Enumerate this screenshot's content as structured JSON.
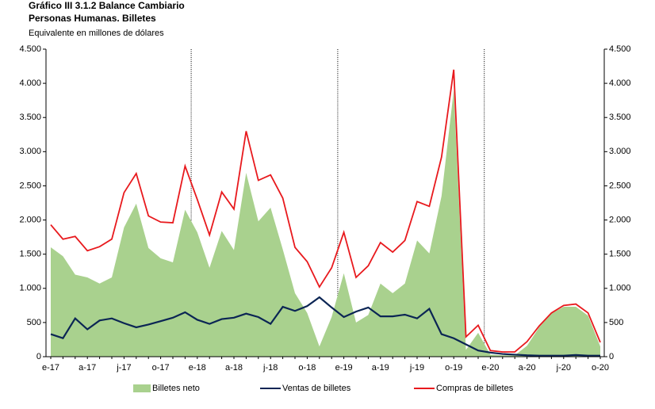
{
  "chart_data": {
    "type": "line",
    "title": "Gráfico III 3.1.2 Balance Cambiario",
    "subtitle": "Personas Humanas. Billetes",
    "y_label": "Equivalente en millones de dólares",
    "categories": [
      "e-17",
      null,
      null,
      "a-17",
      null,
      null,
      "j-17",
      null,
      null,
      "o-17",
      null,
      null,
      "e-18",
      null,
      null,
      "a-18",
      null,
      null,
      "j-18",
      null,
      null,
      "o-18",
      null,
      null,
      "e-19",
      null,
      null,
      "a-19",
      null,
      null,
      "j-19",
      null,
      null,
      "o-19",
      null,
      null,
      "e-20",
      null,
      null,
      "a-20",
      null,
      null,
      "j-20",
      null,
      null,
      "o-20"
    ],
    "series": [
      {
        "name": "Billetes neto",
        "color": "#a9d18e",
        "style": "area",
        "values": [
          1600,
          1470,
          1200,
          1160,
          1070,
          1160,
          1890,
          2240,
          1590,
          1440,
          1380,
          2150,
          1820,
          1300,
          1840,
          1560,
          2690,
          1980,
          2180,
          1570,
          930,
          640,
          150,
          580,
          1220,
          500,
          610,
          1070,
          930,
          1070,
          1700,
          1510,
          2350,
          3900,
          100,
          350,
          30,
          20,
          20,
          160,
          430,
          630,
          730,
          730,
          600,
          150
        ]
      },
      {
        "name": "Ventas de billetes",
        "color": "#0b2554",
        "style": "line",
        "values": [
          330,
          270,
          560,
          400,
          530,
          560,
          490,
          430,
          470,
          520,
          570,
          650,
          540,
          480,
          550,
          570,
          630,
          580,
          480,
          730,
          670,
          740,
          870,
          720,
          580,
          660,
          720,
          590,
          590,
          615,
          560,
          700,
          330,
          270,
          180,
          90,
          60,
          40,
          30,
          20,
          15,
          15,
          15,
          25,
          15,
          15
        ]
      },
      {
        "name": "Compras de billetes",
        "color": "#e8191d",
        "style": "line",
        "values": [
          1930,
          1720,
          1760,
          1550,
          1610,
          1720,
          2400,
          2680,
          2060,
          1970,
          1960,
          2790,
          2300,
          1780,
          2410,
          2160,
          3300,
          2580,
          2660,
          2320,
          1600,
          1390,
          1020,
          1300,
          1820,
          1160,
          1330,
          1670,
          1530,
          1700,
          2270,
          2200,
          2920,
          4200,
          290,
          460,
          90,
          70,
          70,
          220,
          450,
          640,
          750,
          770,
          640,
          210
        ]
      }
    ],
    "ylim": [
      0,
      4500
    ],
    "yticks": [
      0,
      500,
      {
        "value": 1000,
        "label": "1.000"
      },
      {
        "value": 1500,
        "label": "1.500"
      },
      {
        "value": 2000,
        "label": "2.000"
      },
      {
        "value": 2500,
        "label": "2.500"
      },
      {
        "value": 3000,
        "label": "3.000"
      },
      {
        "value": 3500,
        "label": "3.500"
      },
      {
        "value": 4000,
        "label": "4.000"
      },
      {
        "value": 4500,
        "label": "4.500"
      }
    ],
    "y2lim": [
      0,
      4500
    ],
    "y2ticks": [
      0,
      500,
      {
        "value": 1000,
        "label": "1.000"
      },
      {
        "value": 1500,
        "label": "1.500"
      },
      {
        "value": 2000,
        "label": "2.000"
      },
      {
        "value": 2500,
        "label": "2.500"
      },
      {
        "value": 3000,
        "label": "3.000"
      },
      {
        "value": 3500,
        "label": "3.500"
      },
      {
        "value": 4000,
        "label": "4.000"
      },
      {
        "value": 4500,
        "label": "4.500"
      }
    ],
    "legend": "bottom"
  }
}
